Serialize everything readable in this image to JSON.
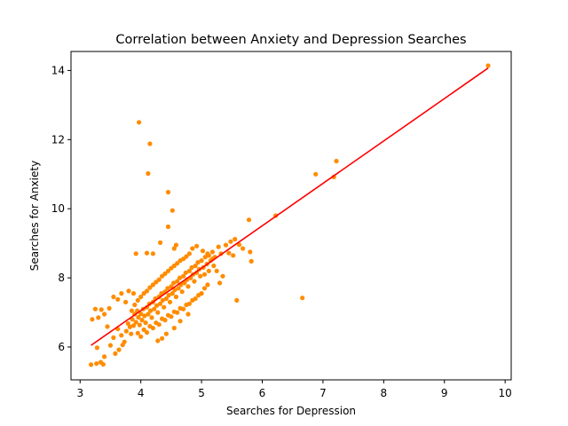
{
  "chart_data": {
    "type": "scatter",
    "title": "Correlation between Anxiety and Depression Searches",
    "xlabel": "Searches for Depression",
    "ylabel": "Searches for Anxiety",
    "xlim": [
      2.85,
      10.1
    ],
    "ylim": [
      5.05,
      14.55
    ],
    "xticks": [
      3,
      4,
      5,
      6,
      7,
      8,
      9,
      10
    ],
    "yticks": [
      6,
      8,
      10,
      12,
      14
    ],
    "grid": false,
    "legend": "none",
    "colors": {
      "points": "#ff8c00",
      "trendline": "#ff0000",
      "axes": "#000000"
    },
    "points": [
      [
        3.18,
        5.49
      ],
      [
        3.27,
        5.52
      ],
      [
        3.34,
        5.56
      ],
      [
        3.38,
        5.5
      ],
      [
        3.28,
        5.98
      ],
      [
        3.4,
        5.72
      ],
      [
        3.5,
        6.05
      ],
      [
        3.58,
        5.81
      ],
      [
        3.64,
        5.92
      ],
      [
        3.7,
        6.06
      ],
      [
        3.45,
        6.59
      ],
      [
        3.55,
        6.27
      ],
      [
        3.62,
        6.52
      ],
      [
        3.68,
        6.34
      ],
      [
        3.73,
        6.15
      ],
      [
        3.76,
        6.46
      ],
      [
        3.79,
        6.68
      ],
      [
        3.82,
        6.58
      ],
      [
        3.84,
        6.38
      ],
      [
        3.86,
        6.8
      ],
      [
        3.88,
        6.62
      ],
      [
        3.9,
        6.95
      ],
      [
        3.92,
        6.72
      ],
      [
        3.94,
        7.05
      ],
      [
        3.96,
        6.86
      ],
      [
        3.98,
        6.64
      ],
      [
        4.0,
        6.96
      ],
      [
        4.02,
        6.78
      ],
      [
        4.04,
        7.1
      ],
      [
        4.06,
        6.9
      ],
      [
        4.08,
        6.7
      ],
      [
        4.1,
        7.15
      ],
      [
        4.12,
        6.95
      ],
      [
        4.14,
        7.25
      ],
      [
        4.16,
        7.05
      ],
      [
        4.18,
        6.85
      ],
      [
        4.2,
        7.3
      ],
      [
        4.22,
        7.1
      ],
      [
        4.24,
        7.4
      ],
      [
        4.26,
        7.2
      ],
      [
        4.28,
        7.0
      ],
      [
        4.3,
        7.45
      ],
      [
        4.32,
        7.25
      ],
      [
        4.34,
        7.55
      ],
      [
        4.36,
        7.35
      ],
      [
        4.38,
        7.15
      ],
      [
        4.4,
        7.6
      ],
      [
        4.42,
        7.4
      ],
      [
        4.44,
        7.7
      ],
      [
        4.46,
        7.5
      ],
      [
        4.48,
        7.3
      ],
      [
        4.5,
        7.75
      ],
      [
        4.52,
        7.55
      ],
      [
        4.54,
        7.85
      ],
      [
        4.56,
        7.65
      ],
      [
        4.58,
        7.45
      ],
      [
        4.6,
        7.9
      ],
      [
        4.62,
        7.7
      ],
      [
        4.64,
        8.0
      ],
      [
        4.66,
        7.8
      ],
      [
        4.68,
        7.6
      ],
      [
        4.7,
        8.05
      ],
      [
        4.72,
        7.85
      ],
      [
        4.74,
        8.15
      ],
      [
        4.76,
        7.95
      ],
      [
        4.78,
        7.75
      ],
      [
        4.8,
        8.2
      ],
      [
        4.82,
        8.0
      ],
      [
        4.84,
        8.3
      ],
      [
        4.86,
        8.1
      ],
      [
        4.88,
        7.9
      ],
      [
        4.9,
        8.35
      ],
      [
        4.92,
        8.15
      ],
      [
        4.94,
        8.45
      ],
      [
        4.96,
        8.25
      ],
      [
        4.98,
        8.05
      ],
      [
        5.0,
        8.5
      ],
      [
        5.03,
        8.3
      ],
      [
        5.06,
        8.6
      ],
      [
        5.09,
        8.4
      ],
      [
        5.12,
        8.65
      ],
      [
        5.15,
        8.5
      ],
      [
        5.18,
        8.75
      ],
      [
        5.22,
        8.6
      ],
      [
        5.28,
        8.9
      ],
      [
        5.32,
        8.7
      ],
      [
        5.4,
        8.95
      ],
      [
        5.48,
        9.05
      ],
      [
        5.55,
        9.12
      ],
      [
        5.62,
        8.96
      ],
      [
        3.85,
        7.05
      ],
      [
        3.9,
        7.22
      ],
      [
        3.95,
        7.35
      ],
      [
        4.0,
        7.45
      ],
      [
        4.05,
        7.55
      ],
      [
        4.1,
        7.62
      ],
      [
        4.15,
        7.72
      ],
      [
        4.2,
        7.8
      ],
      [
        4.25,
        7.88
      ],
      [
        4.3,
        7.95
      ],
      [
        4.35,
        8.05
      ],
      [
        4.4,
        8.12
      ],
      [
        4.45,
        8.2
      ],
      [
        4.5,
        8.28
      ],
      [
        4.55,
        8.35
      ],
      [
        4.6,
        8.42
      ],
      [
        4.65,
        8.5
      ],
      [
        4.7,
        8.55
      ],
      [
        4.75,
        8.62
      ],
      [
        4.8,
        8.7
      ],
      [
        3.95,
        6.4
      ],
      [
        4.0,
        6.3
      ],
      [
        4.05,
        6.5
      ],
      [
        4.1,
        6.42
      ],
      [
        4.15,
        6.6
      ],
      [
        4.2,
        6.55
      ],
      [
        4.25,
        6.7
      ],
      [
        4.3,
        6.65
      ],
      [
        4.35,
        6.82
      ],
      [
        4.4,
        6.78
      ],
      [
        4.45,
        6.92
      ],
      [
        4.5,
        6.88
      ],
      [
        4.55,
        7.02
      ],
      [
        4.6,
        7.0
      ],
      [
        4.65,
        7.12
      ],
      [
        4.7,
        7.1
      ],
      [
        4.75,
        7.22
      ],
      [
        4.8,
        7.25
      ],
      [
        4.85,
        7.35
      ],
      [
        4.9,
        7.4
      ],
      [
        4.95,
        7.5
      ],
      [
        5.0,
        7.55
      ],
      [
        5.05,
        7.7
      ],
      [
        5.1,
        7.8
      ],
      [
        4.28,
        6.18
      ],
      [
        4.35,
        6.25
      ],
      [
        4.42,
        6.38
      ],
      [
        4.55,
        6.55
      ],
      [
        4.65,
        6.75
      ],
      [
        4.78,
        6.95
      ],
      [
        3.2,
        6.8
      ],
      [
        3.25,
        7.1
      ],
      [
        3.3,
        6.85
      ],
      [
        3.35,
        7.08
      ],
      [
        3.4,
        6.95
      ],
      [
        3.48,
        7.12
      ],
      [
        3.55,
        7.45
      ],
      [
        3.62,
        7.38
      ],
      [
        3.68,
        7.55
      ],
      [
        3.75,
        7.3
      ],
      [
        3.8,
        7.62
      ],
      [
        3.88,
        7.55
      ],
      [
        3.92,
        8.7
      ],
      [
        4.1,
        8.72
      ],
      [
        4.2,
        8.7
      ],
      [
        4.32,
        9.02
      ],
      [
        4.45,
        9.48
      ],
      [
        4.55,
        8.85
      ],
      [
        4.58,
        8.95
      ],
      [
        4.85,
        8.85
      ],
      [
        4.92,
        8.92
      ],
      [
        5.02,
        8.78
      ],
      [
        5.1,
        8.7
      ],
      [
        5.18,
        8.55
      ],
      [
        5.05,
        8.1
      ],
      [
        5.12,
        8.2
      ],
      [
        5.2,
        8.35
      ],
      [
        5.25,
        8.2
      ],
      [
        5.3,
        7.85
      ],
      [
        5.35,
        8.05
      ],
      [
        5.45,
        8.72
      ],
      [
        5.52,
        8.65
      ],
      [
        5.58,
        7.35
      ],
      [
        5.68,
        8.85
      ],
      [
        5.8,
        8.75
      ],
      [
        5.82,
        8.48
      ],
      [
        5.78,
        9.68
      ],
      [
        6.22,
        9.8
      ],
      [
        4.52,
        9.95
      ],
      [
        4.45,
        10.48
      ],
      [
        6.66,
        7.42
      ],
      [
        6.88,
        11.0
      ],
      [
        7.18,
        10.92
      ],
      [
        7.22,
        11.38
      ],
      [
        4.12,
        11.02
      ],
      [
        4.15,
        11.88
      ],
      [
        3.97,
        12.5
      ],
      [
        9.72,
        14.14
      ]
    ],
    "trendline": {
      "x": [
        3.18,
        9.72
      ],
      "y": [
        6.05,
        14.07
      ]
    }
  }
}
